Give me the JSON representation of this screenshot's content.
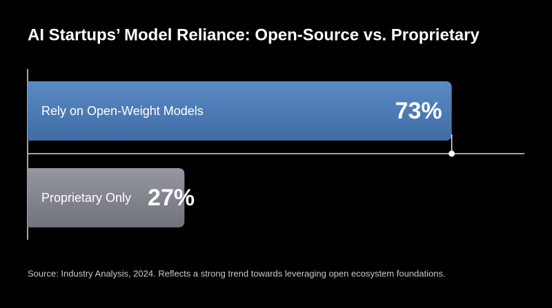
{
  "chart_data": {
    "type": "bar",
    "orientation": "horizontal",
    "title": "AI Startups’ Model Reliance: Open-Source vs. Proprietary",
    "categories": [
      "Rely on Open-Weight Models",
      "Proprietary Only"
    ],
    "values": [
      73,
      27
    ],
    "value_labels": [
      "73%",
      "27%"
    ],
    "colors": [
      "#4e7db6",
      "#84868f"
    ],
    "note": "Source: Industry Analysis, 2024. Reflects a strong trend towards leveraging open ecosystem foundations."
  }
}
